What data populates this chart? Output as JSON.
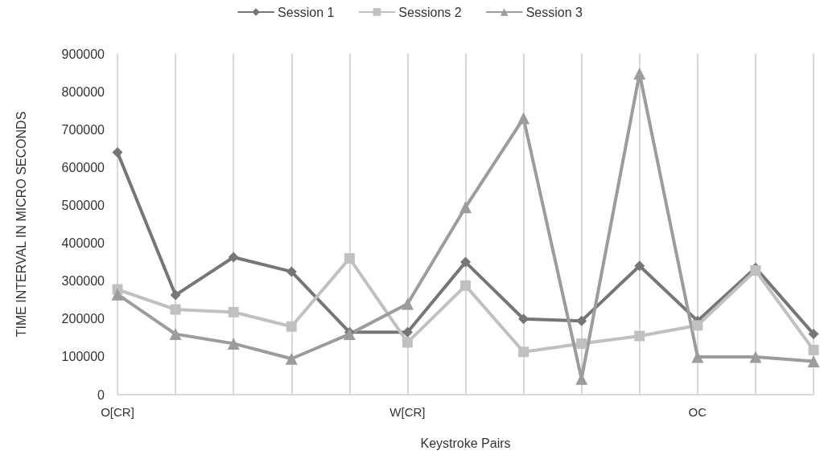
{
  "chart_data": {
    "type": "line",
    "xlabel": "Keystroke Pairs",
    "ylabel": "TIME INTERVAL IN MICRO SECONDS",
    "categories": [
      "O[CR]",
      null,
      null,
      null,
      null,
      "W[CR]",
      null,
      null,
      null,
      null,
      "OC",
      null,
      null
    ],
    "series": [
      {
        "name": "Session 1",
        "color": "#767676",
        "marker": "diamond",
        "values": [
          640000,
          263000,
          363000,
          325000,
          165000,
          165000,
          350000,
          200000,
          195000,
          340000,
          195000,
          335000,
          160000
        ]
      },
      {
        "name": "Sessions 2",
        "color": "#c0c0c0",
        "marker": "square",
        "values": [
          278000,
          225000,
          218000,
          180000,
          360000,
          138000,
          288000,
          113000,
          135000,
          155000,
          183000,
          328000,
          118000
        ]
      },
      {
        "name": "Session 3",
        "color": "#9c9c9c",
        "marker": "triangle",
        "values": [
          265000,
          160000,
          135000,
          95000,
          160000,
          240000,
          495000,
          730000,
          42000,
          848000,
          100000,
          100000,
          88000
        ]
      }
    ],
    "ylim": [
      0,
      900000
    ],
    "yticks": [
      0,
      100000,
      200000,
      300000,
      400000,
      500000,
      600000,
      700000,
      800000,
      900000
    ],
    "grid": "x",
    "legend": "top",
    "line_style": "solid"
  }
}
